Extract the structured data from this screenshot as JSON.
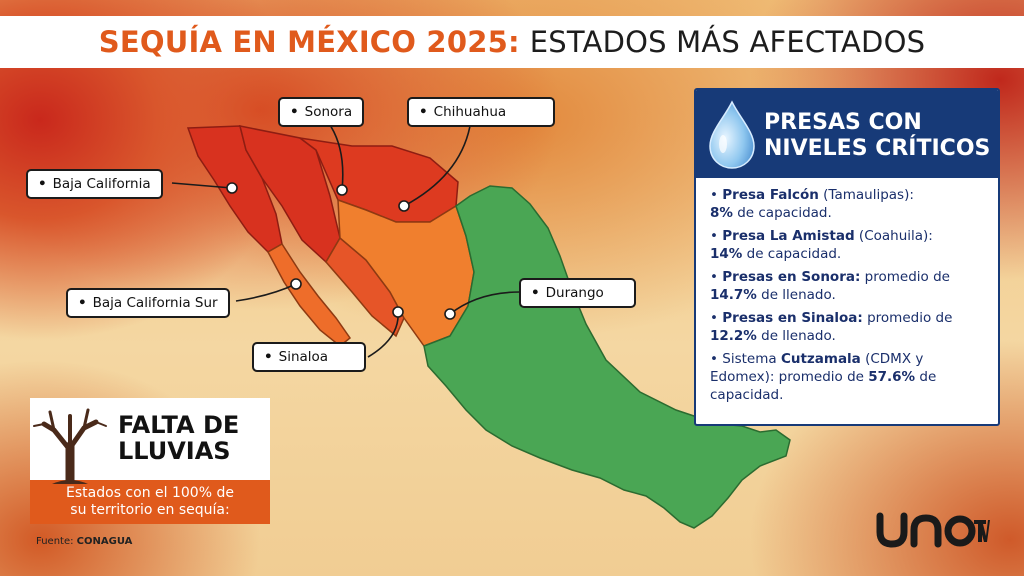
{
  "title": {
    "highlight": "SEQUÍA EN MÉXICO 2025:",
    "rest": "ESTADOS MÁS AFECTADOS"
  },
  "states": {
    "sonora": "Sonora",
    "chihuahua": "Chihuahua",
    "baja_california": "Baja California",
    "baja_california_sur": "Baja California Sur",
    "sinaloa": "Sinaloa",
    "durango": "Durango"
  },
  "dams": {
    "title_line1": "PRESAS CON",
    "title_line2": "NIVELES CRÍTICOS",
    "items": [
      {
        "name": "Presa Falcón",
        "region": " (Tamaulipas):",
        "value": "8%",
        "suffix": " de capacidad."
      },
      {
        "name": "Presa La Amistad",
        "region": " (Coahuila):",
        "value": "14%",
        "suffix": " de capacidad."
      },
      {
        "lead": "Presas en Sonora:",
        "mid": " promedio de ",
        "value": "14.7%",
        "suffix": " de llenado."
      },
      {
        "lead": "Presas en Sinaloa:",
        "mid": " promedio de ",
        "value": "12.2%",
        "suffix": " de llenado."
      },
      {
        "pre": "Sistema ",
        "name": "Cutzamala",
        "region": " (CDMX y Edomex): promedio de ",
        "value": "57.6%",
        "suffix": " de capacidad."
      }
    ]
  },
  "rain": {
    "line1": "FALTA DE",
    "line2": "LLUVIAS",
    "sub_line1": "Estados con el 100% de",
    "sub_line2": "su territorio en sequía:"
  },
  "source": {
    "label": "Fuente:",
    "value": "CONAGUA"
  },
  "logo": {
    "uno": "UNO",
    "tv": "TV"
  },
  "colors": {
    "title_accent": "#e05a1c",
    "drought_red": "#d8321f",
    "drought_orange": "#ef7b2c",
    "normal_green": "#4aa654",
    "panel_blue": "#173a78"
  },
  "icons": [
    "water-drop-icon",
    "dead-tree-icon"
  ]
}
